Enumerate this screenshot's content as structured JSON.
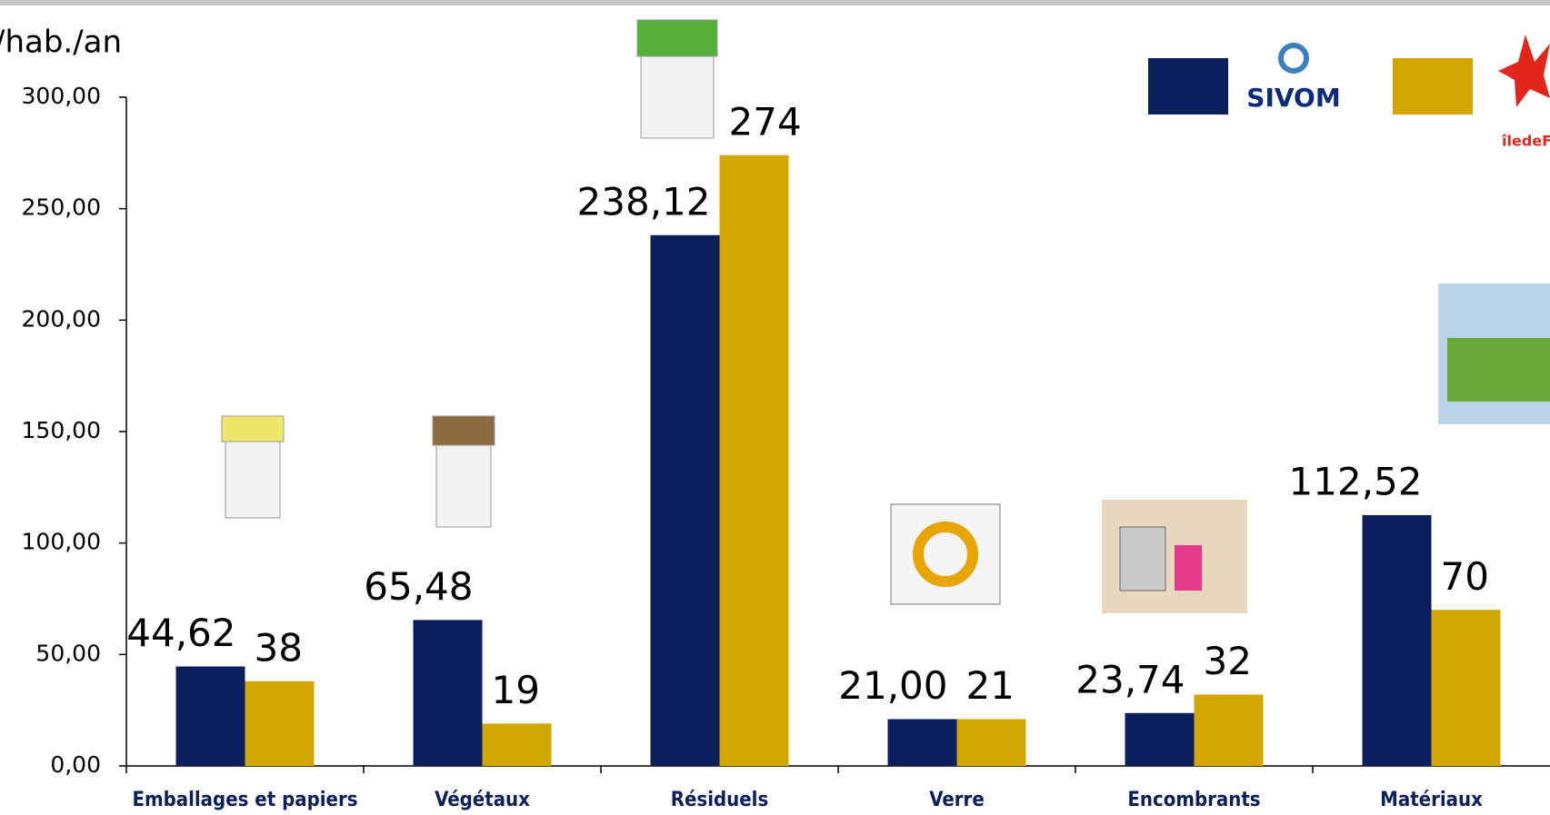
{
  "chart_data": {
    "type": "bar",
    "y_label": "/hab./an",
    "categories": [
      "Emballages et papiers",
      "Végétaux",
      "Résiduels",
      "Verre",
      "Encombrants",
      "Matériaux"
    ],
    "series": [
      {
        "name": "SIVOM",
        "color": "#0a1f5c",
        "values": [
          44.62,
          65.48,
          238.12,
          21.0,
          23.74,
          112.52
        ],
        "value_labels": [
          "44,62",
          "65,48",
          "238,12",
          "21,00",
          "23,74",
          "112,52"
        ]
      },
      {
        "name": "îledeF",
        "color": "#d4a600",
        "values": [
          38,
          19,
          274,
          21,
          32,
          70
        ]
      }
    ],
    "ylim": [
      0,
      300
    ],
    "yticks": [
      {
        "value": 0,
        "label": "0,00"
      },
      {
        "value": 50,
        "label": "50,00"
      },
      {
        "value": 100,
        "label": "100,00"
      },
      {
        "value": 150,
        "label": "150,00"
      },
      {
        "value": 200,
        "label": "200,00"
      },
      {
        "value": 250,
        "label": "250,00"
      },
      {
        "value": 300,
        "label": "300,00"
      }
    ],
    "grid": false,
    "legend_position": "top-right"
  }
}
